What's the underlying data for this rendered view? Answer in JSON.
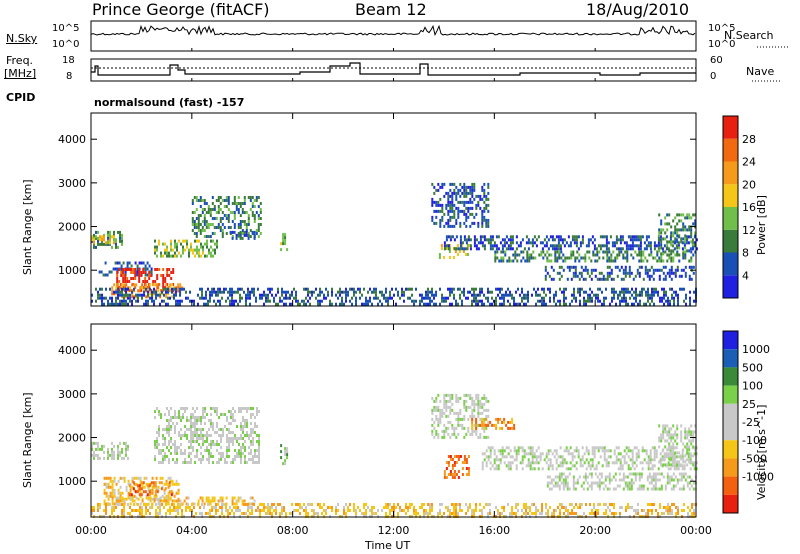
{
  "header": {
    "station": "Prince George (fitACF)",
    "beam": "Beam 12",
    "date": "18/Aug/2010"
  },
  "top_panels": {
    "nsky_label": "N.Sky",
    "nsky_ticks": [
      "10^5",
      "10^0"
    ],
    "nsearch_label": "N.Search",
    "nsearch_ticks": [
      "10^5",
      "10^0"
    ],
    "freq_label": "Freq.",
    "freq_unit": "[MHz]",
    "freq_ticks": [
      "18",
      "8"
    ],
    "nave_label": "Nave",
    "nave_ticks": [
      "60",
      "0"
    ],
    "cpid_label": "CPID",
    "cpid_text": "normalsound (fast) -157"
  },
  "colors": {
    "power_scale": [
      "#2020e0",
      "#1a4fb5",
      "#3a7a3a",
      "#6fbf4a",
      "#f5c518",
      "#f59a1a",
      "#f26a10",
      "#e82010"
    ],
    "velocity_scale": [
      "#2020e0",
      "#1a5fb5",
      "#3a8a3a",
      "#7bd04a",
      "#c8c8c8",
      "#c8c8c8",
      "#f5c518",
      "#f59a1a",
      "#f26010",
      "#e82010"
    ],
    "ground_scatter": "#c8c8c8"
  },
  "chart_data": [
    {
      "type": "heatmap",
      "title": "",
      "xlabel": "Time UT",
      "ylabel": "Slant Range [km]",
      "xticks": [
        "00:00",
        "04:00",
        "08:00",
        "12:00",
        "16:00",
        "20:00",
        "00:00"
      ],
      "xlim_hours": [
        0,
        24
      ],
      "yticks": [
        "1000",
        "2000",
        "3000",
        "4000"
      ],
      "ylim_km": [
        180,
        4600
      ],
      "colorbar": {
        "label": "Power [dB]",
        "ticks": [
          "4",
          "8",
          "12",
          "16",
          "20",
          "24",
          "28"
        ],
        "range": [
          0,
          30
        ]
      },
      "regions": [
        {
          "t0": 0.0,
          "t1": 1.2,
          "r0": 1500,
          "r1": 1900,
          "level": 2
        },
        {
          "t0": 0.0,
          "t1": 1.0,
          "r0": 1650,
          "r1": 1800,
          "level": 4
        },
        {
          "t0": 0.3,
          "t1": 2.5,
          "r0": 900,
          "r1": 1200,
          "level": 1
        },
        {
          "t0": 1.0,
          "t1": 3.3,
          "r0": 550,
          "r1": 1050,
          "level": 7
        },
        {
          "t0": 0.8,
          "t1": 3.6,
          "r0": 400,
          "r1": 700,
          "level": 5
        },
        {
          "t0": 0.0,
          "t1": 24.0,
          "r0": 200,
          "r1": 600,
          "level": 1
        },
        {
          "t0": 2.5,
          "t1": 5.0,
          "r0": 1300,
          "r1": 1700,
          "level": 3
        },
        {
          "t0": 4.0,
          "t1": 6.7,
          "r0": 1800,
          "r1": 2700,
          "level": 2
        },
        {
          "t0": 5.5,
          "t1": 6.5,
          "r0": 1700,
          "r1": 1900,
          "level": 1
        },
        {
          "t0": 7.5,
          "t1": 7.8,
          "r0": 1400,
          "r1": 1850,
          "level": 3
        },
        {
          "t0": 13.5,
          "t1": 15.8,
          "r0": 2000,
          "r1": 3000,
          "level": 1
        },
        {
          "t0": 13.8,
          "t1": 15.0,
          "r0": 1300,
          "r1": 1600,
          "level": 4
        },
        {
          "t0": 14.0,
          "t1": 24.0,
          "r0": 1500,
          "r1": 1800,
          "level": 1
        },
        {
          "t0": 16.0,
          "t1": 24.0,
          "r0": 1200,
          "r1": 1450,
          "level": 2
        },
        {
          "t0": 18.0,
          "t1": 24.0,
          "r0": 800,
          "r1": 1100,
          "level": 1
        },
        {
          "t0": 22.5,
          "t1": 24.0,
          "r0": 1400,
          "r1": 2300,
          "level": 2
        }
      ]
    },
    {
      "type": "heatmap",
      "title": "",
      "xlabel": "Time UT",
      "ylabel": "Slant Range [km]",
      "xticks": [
        "00:00",
        "04:00",
        "08:00",
        "12:00",
        "16:00",
        "20:00",
        "00:00"
      ],
      "xlim_hours": [
        0,
        24
      ],
      "yticks": [
        "1000",
        "2000",
        "3000",
        "4000"
      ],
      "ylim_km": [
        180,
        4600
      ],
      "colorbar": {
        "label": "Velocity [m s^-1]",
        "ticks": [
          "1000",
          "500",
          "100",
          "25",
          "-25",
          "-100",
          "-500",
          "-1000"
        ]
      },
      "regions": [
        {
          "t0": 0.0,
          "t1": 1.5,
          "r0": 1500,
          "r1": 1900,
          "level": 4
        },
        {
          "t0": 0.5,
          "t1": 3.5,
          "r0": 600,
          "r1": 1100,
          "level": 6
        },
        {
          "t0": 1.5,
          "t1": 3.2,
          "r0": 700,
          "r1": 1000,
          "level": 8
        },
        {
          "t0": 0.5,
          "t1": 6.5,
          "r0": 450,
          "r1": 650,
          "level": 6
        },
        {
          "t0": 2.5,
          "t1": 6.7,
          "r0": 1400,
          "r1": 2700,
          "level": 4
        },
        {
          "t0": 0.0,
          "t1": 24.0,
          "r0": 200,
          "r1": 500,
          "level": 6
        },
        {
          "t0": 7.5,
          "t1": 7.8,
          "r0": 1400,
          "r1": 1850,
          "level": 3
        },
        {
          "t0": 13.5,
          "t1": 15.8,
          "r0": 2000,
          "r1": 3000,
          "level": 4
        },
        {
          "t0": 14.0,
          "t1": 15.0,
          "r0": 1100,
          "r1": 1600,
          "level": 8
        },
        {
          "t0": 15.0,
          "t1": 16.8,
          "r0": 2200,
          "r1": 2450,
          "level": 7
        },
        {
          "t0": 15.5,
          "t1": 24.0,
          "r0": 1300,
          "r1": 1800,
          "level": 4
        },
        {
          "t0": 18.0,
          "t1": 24.0,
          "r0": 800,
          "r1": 1200,
          "level": 4
        },
        {
          "t0": 22.5,
          "t1": 24.0,
          "r0": 1400,
          "r1": 2300,
          "level": 4
        }
      ]
    }
  ]
}
